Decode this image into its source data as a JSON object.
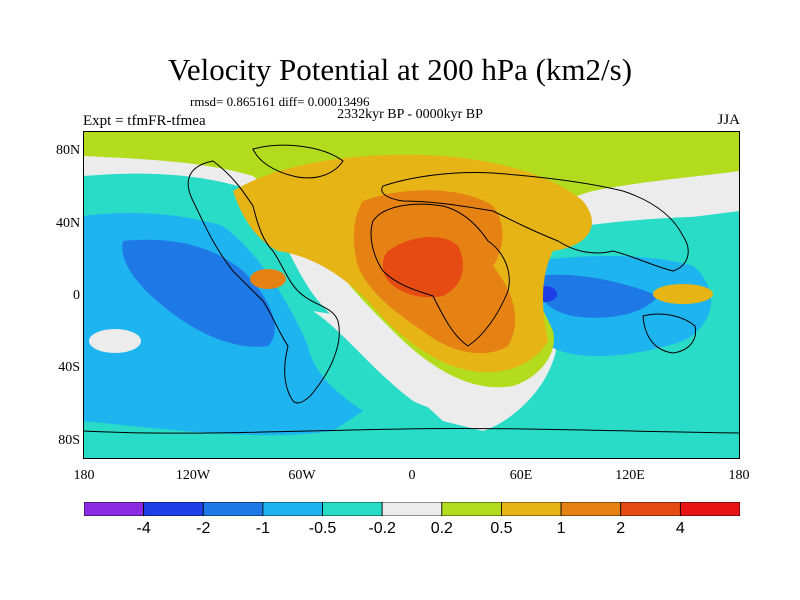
{
  "title": "Velocity Potential at 200 hPa (km2/s)",
  "stats": "rmsd= 0.865161 diff= 0.00013496",
  "period": "2332kyr BP - 0000kyr BP",
  "experiment": "Expt = tfmFR-tfmea",
  "season": "JJA",
  "axes": {
    "lat_ticks": [
      "80N",
      "40N",
      "0",
      "40S",
      "80S"
    ],
    "lon_ticks": [
      "180",
      "120W",
      "60W",
      "0",
      "60E",
      "120E",
      "180"
    ]
  },
  "colorbar": {
    "labels": [
      "-4",
      "-2",
      "-1",
      "-0.5",
      "-0.2",
      "0.2",
      "0.5",
      "1",
      "2",
      "4"
    ],
    "colors": [
      "#8a2be2",
      "#1e3ee6",
      "#1e78e6",
      "#1eb4f0",
      "#28dcc8",
      "#ececec",
      "#b4dc1e",
      "#e6b414",
      "#e68214",
      "#e64b14",
      "#e61414"
    ]
  }
}
